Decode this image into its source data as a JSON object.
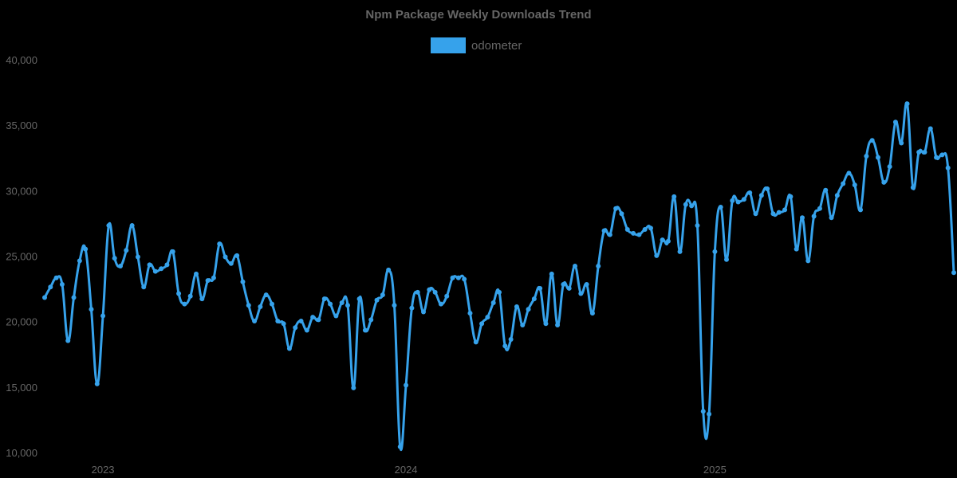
{
  "chart_data": {
    "type": "line",
    "title": "Npm Package Weekly Downloads Trend",
    "xlabel": "",
    "ylabel": "",
    "ylim": [
      10000,
      40000
    ],
    "yticks": [
      "10,000",
      "15,000",
      "20,000",
      "25,000",
      "30,000",
      "35,000",
      "40,000"
    ],
    "xticks": [
      {
        "label": "2023",
        "index": 10
      },
      {
        "label": "2024",
        "index": 62
      },
      {
        "label": "2025",
        "index": 115
      }
    ],
    "grid": false,
    "legend_position": "top",
    "color": "#36a2eb",
    "series": [
      {
        "name": "odometer",
        "values": [
          21900,
          22700,
          23400,
          22900,
          18600,
          21900,
          24700,
          25600,
          21000,
          15300,
          20500,
          27400,
          24900,
          24300,
          25500,
          27400,
          25000,
          22700,
          24400,
          23900,
          24100,
          24400,
          25400,
          22200,
          21400,
          22000,
          23700,
          21800,
          23200,
          23400,
          26000,
          25000,
          24500,
          25100,
          23100,
          21300,
          20100,
          21200,
          22100,
          21400,
          20100,
          19900,
          18000,
          19600,
          20100,
          19400,
          20400,
          20200,
          21800,
          21400,
          20500,
          21500,
          21300,
          15000,
          21800,
          19400,
          20200,
          21700,
          22100,
          24000,
          21300,
          10500,
          15200,
          21100,
          22300,
          20800,
          22500,
          22300,
          21400,
          22000,
          23400,
          23400,
          23300,
          20700,
          18500,
          19900,
          20400,
          21500,
          22300,
          18200,
          18700,
          21200,
          19800,
          21000,
          21800,
          22600,
          19900,
          23700,
          19800,
          22900,
          22600,
          24300,
          22200,
          22900,
          20700,
          24300,
          27000,
          26700,
          28700,
          28300,
          27100,
          26800,
          26700,
          27100,
          27200,
          25100,
          26300,
          26200,
          29600,
          25400,
          29000,
          28900,
          27400,
          13200,
          13000,
          25400,
          28800,
          24800,
          29300,
          29200,
          29400,
          29900,
          28300,
          29700,
          30200,
          28300,
          28400,
          28600,
          29600,
          25600,
          28000,
          24700,
          28100,
          28700,
          30100,
          28000,
          29700,
          30600,
          31400,
          30500,
          28600,
          32700,
          33900,
          32600,
          30700,
          31900,
          35300,
          33700,
          36700,
          30300,
          33000,
          33000,
          34800,
          32600,
          32800,
          31800,
          23800
        ]
      }
    ]
  },
  "header": {
    "title": "Npm Package Weekly Downloads Trend"
  },
  "legend": {
    "label": "odometer",
    "color": "#36a2eb"
  }
}
